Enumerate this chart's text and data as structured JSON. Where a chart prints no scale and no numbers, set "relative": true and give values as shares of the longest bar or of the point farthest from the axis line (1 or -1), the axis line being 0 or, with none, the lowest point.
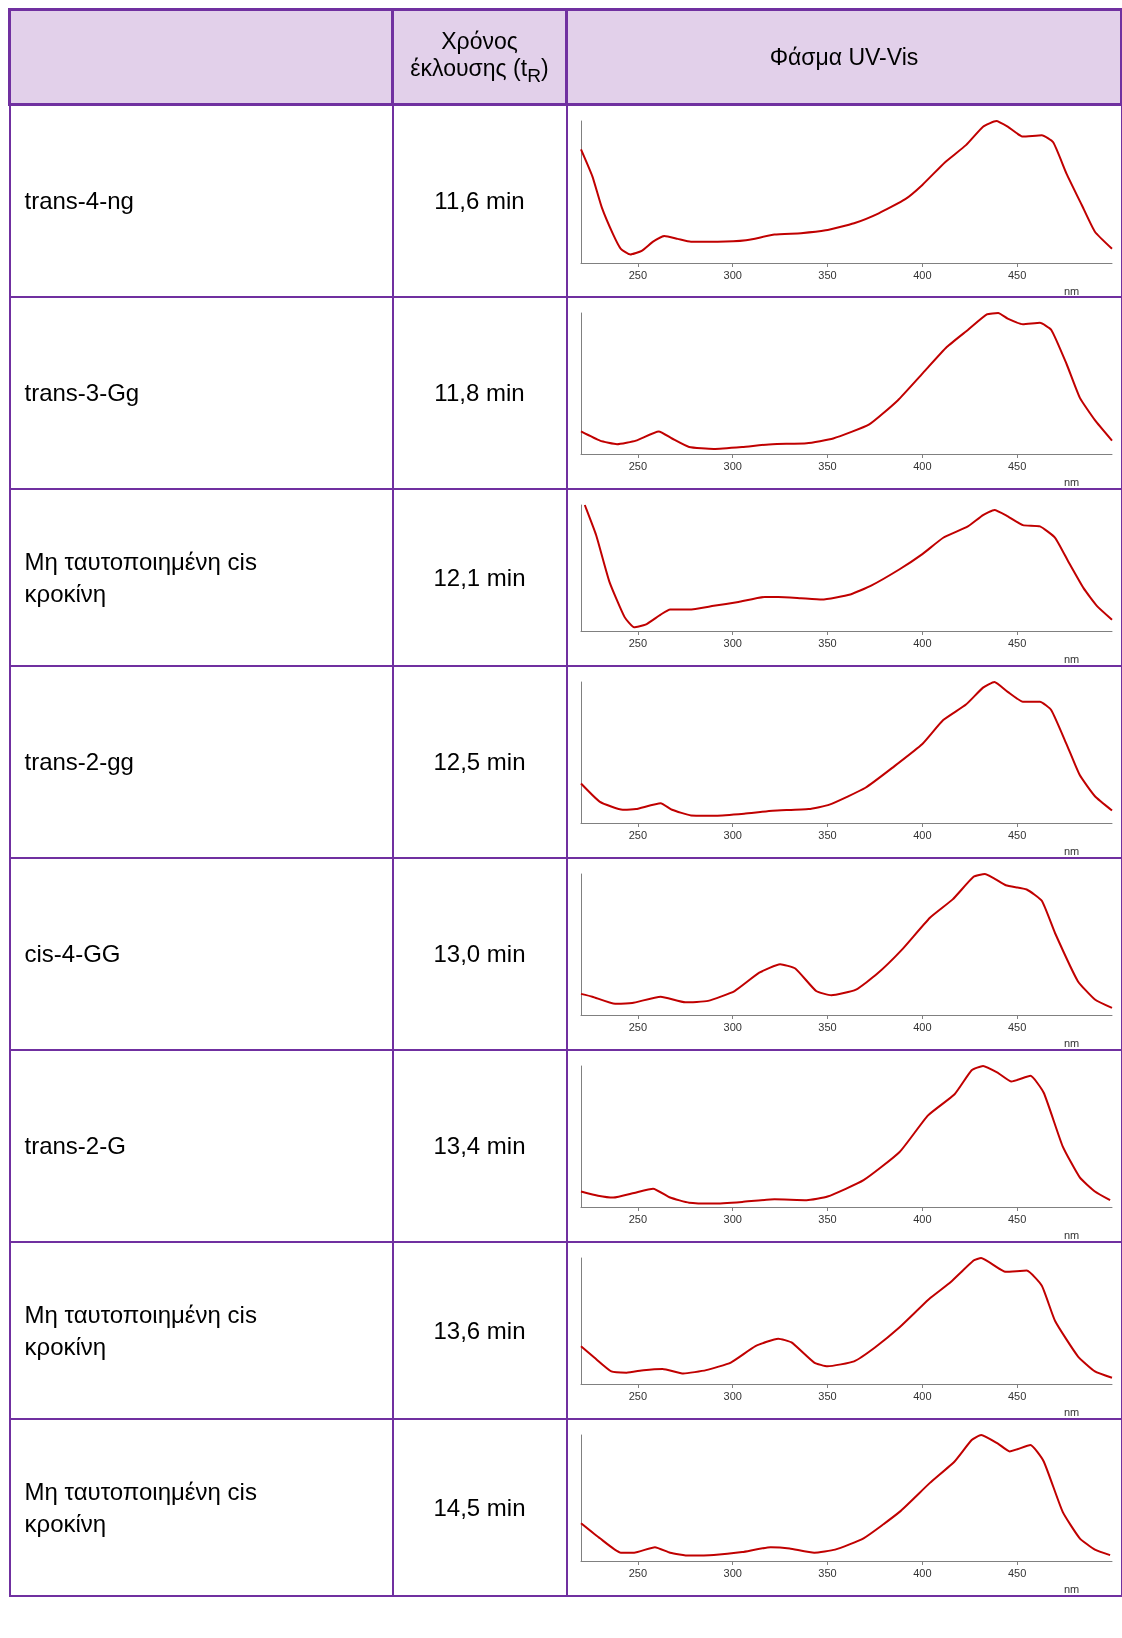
{
  "chart_data": [
    {
      "type": "other",
      "annotations": [
        "Χρόνος έκλουσης (t$_{R}$)",
        "Φάσμα UV-Vis",
        "trans-4-ng",
        "11,6 min",
        "trans-3-Gg",
        "11,8 min",
        "Μη ταυτοποιημένη cis κροκίνη",
        "12,1 min",
        "trans-2-gg",
        "12,5 min",
        "cis-4-GG",
        "13,0 min",
        "trans-2-G",
        "13,4 min",
        "Μη ταυτοποιημένη cis κροκίνη",
        "13,6 min",
        "Μη ταυτοποιημένη cis κροκίνη",
        "14,5 min"
      ]
    },
    {
      "type": "line",
      "xlabel": "nm",
      "relative": true,
      "color": "#c00000",
      "xlim": [
        220,
        500
      ],
      "xticks": [
        250,
        300,
        350,
        400,
        450
      ],
      "x": [
        220,
        226,
        231,
        237,
        241,
        246,
        252,
        258,
        264,
        271,
        278,
        292,
        307,
        322,
        336,
        349,
        364,
        377,
        391,
        400,
        412,
        423,
        432,
        439,
        445,
        453,
        463,
        469,
        476,
        484,
        491,
        500
      ],
      "values": [
        0.8,
        0.61,
        0.39,
        0.2,
        0.1,
        0.06,
        0.085,
        0.15,
        0.19,
        0.17,
        0.15,
        0.15,
        0.16,
        0.2,
        0.21,
        0.23,
        0.28,
        0.35,
        0.45,
        0.55,
        0.71,
        0.83,
        0.96,
        1.0,
        0.96,
        0.89,
        0.9,
        0.85,
        0.63,
        0.41,
        0.22,
        0.1
      ]
    },
    {
      "type": "line",
      "xlabel": "nm",
      "relative": true,
      "color": "#c00000",
      "xlim": [
        220,
        500
      ],
      "xticks": [
        250,
        300,
        350,
        400,
        450
      ],
      "x": [
        220,
        230,
        239,
        249,
        261,
        268,
        277,
        290,
        305,
        321,
        339,
        353,
        372,
        387,
        400,
        413,
        424,
        434,
        440,
        445,
        453,
        462,
        468,
        476,
        483,
        491,
        500
      ],
      "values": [
        0.16,
        0.095,
        0.07,
        0.095,
        0.16,
        0.11,
        0.05,
        0.036,
        0.05,
        0.07,
        0.076,
        0.11,
        0.21,
        0.38,
        0.57,
        0.76,
        0.88,
        0.99,
        1.0,
        0.96,
        0.92,
        0.93,
        0.88,
        0.64,
        0.4,
        0.24,
        0.095
      ]
    },
    {
      "type": "line",
      "xlabel": "nm",
      "relative": true,
      "color": "#c00000",
      "xlim": [
        220,
        500
      ],
      "xticks": [
        250,
        300,
        350,
        400,
        450
      ],
      "x": [
        222,
        228,
        235,
        243,
        248,
        254,
        262,
        267,
        277,
        290,
        303,
        317,
        324,
        336,
        347,
        362,
        373,
        388,
        400,
        411,
        424,
        432,
        438,
        445,
        453,
        462,
        470,
        477,
        485,
        492,
        500
      ],
      "values": [
        1.0,
        0.76,
        0.39,
        0.11,
        0.03,
        0.05,
        0.13,
        0.17,
        0.17,
        0.2,
        0.23,
        0.27,
        0.27,
        0.26,
        0.25,
        0.29,
        0.36,
        0.49,
        0.61,
        0.74,
        0.83,
        0.92,
        0.96,
        0.91,
        0.84,
        0.83,
        0.74,
        0.55,
        0.34,
        0.2,
        0.09
      ]
    },
    {
      "type": "line",
      "xlabel": "nm",
      "relative": true,
      "color": "#c00000",
      "xlim": [
        220,
        500
      ],
      "xticks": [
        250,
        300,
        350,
        400,
        450
      ],
      "x": [
        220,
        230,
        242,
        249,
        262,
        268,
        278,
        291,
        306,
        321,
        340,
        351,
        370,
        385,
        400,
        411,
        423,
        432,
        438,
        445,
        453,
        462,
        468,
        476,
        483,
        491,
        500
      ],
      "values": [
        0.28,
        0.15,
        0.094,
        0.099,
        0.14,
        0.094,
        0.054,
        0.052,
        0.066,
        0.087,
        0.099,
        0.13,
        0.25,
        0.4,
        0.56,
        0.73,
        0.84,
        0.96,
        1.0,
        0.93,
        0.86,
        0.86,
        0.8,
        0.56,
        0.34,
        0.19,
        0.089
      ]
    },
    {
      "type": "line",
      "xlabel": "nm",
      "relative": true,
      "color": "#c00000",
      "xlim": [
        220,
        500
      ],
      "xticks": [
        250,
        300,
        350,
        400,
        450
      ],
      "x": [
        220,
        226,
        238,
        247,
        262,
        275,
        287,
        301,
        314,
        325,
        333,
        344,
        352,
        365,
        376,
        389,
        404,
        416,
        427,
        433,
        444,
        455,
        463,
        470,
        482,
        491,
        500
      ],
      "values": [
        0.15,
        0.13,
        0.08,
        0.085,
        0.13,
        0.09,
        0.1,
        0.17,
        0.3,
        0.36,
        0.33,
        0.17,
        0.14,
        0.18,
        0.29,
        0.46,
        0.69,
        0.82,
        0.98,
        1.0,
        0.92,
        0.89,
        0.81,
        0.58,
        0.24,
        0.11,
        0.05
      ]
    },
    {
      "type": "line",
      "xlabel": "nm",
      "relative": true,
      "color": "#c00000",
      "xlim": [
        220,
        500
      ],
      "xticks": [
        250,
        300,
        350,
        400,
        450
      ],
      "x": [
        220,
        229,
        237,
        248,
        258,
        267,
        277,
        290,
        305,
        322,
        339,
        350,
        369,
        388,
        403,
        417,
        426,
        432,
        440,
        447,
        457,
        464,
        474,
        483,
        491,
        499
      ],
      "values": [
        0.11,
        0.08,
        0.067,
        0.1,
        0.13,
        0.067,
        0.03,
        0.024,
        0.036,
        0.055,
        0.048,
        0.074,
        0.19,
        0.39,
        0.65,
        0.8,
        0.97,
        1.0,
        0.95,
        0.89,
        0.93,
        0.81,
        0.43,
        0.21,
        0.11,
        0.048
      ]
    },
    {
      "type": "line",
      "xlabel": "nm",
      "relative": true,
      "color": "#c00000",
      "xlim": [
        220,
        500
      ],
      "xticks": [
        250,
        300,
        350,
        400,
        450
      ],
      "x": [
        220,
        227,
        236,
        244,
        253,
        263,
        274,
        286,
        299,
        312,
        324,
        331,
        343,
        350,
        364,
        375,
        388,
        404,
        415,
        427,
        431,
        444,
        455,
        463,
        470,
        482,
        491,
        500
      ],
      "values": [
        0.3,
        0.21,
        0.1,
        0.09,
        0.11,
        0.12,
        0.083,
        0.11,
        0.17,
        0.3,
        0.36,
        0.33,
        0.17,
        0.14,
        0.18,
        0.29,
        0.45,
        0.68,
        0.81,
        0.98,
        1.0,
        0.89,
        0.9,
        0.78,
        0.5,
        0.22,
        0.1,
        0.05
      ]
    },
    {
      "type": "line",
      "xlabel": "nm",
      "relative": true,
      "color": "#c00000",
      "xlim": [
        220,
        500
      ],
      "xticks": [
        250,
        300,
        350,
        400,
        450
      ],
      "x": [
        220,
        230,
        241,
        248,
        259,
        267,
        277,
        290,
        305,
        320,
        330,
        343,
        354,
        369,
        388,
        404,
        417,
        426,
        431,
        440,
        446,
        457,
        464,
        474,
        483,
        491,
        499
      ],
      "values": [
        0.3,
        0.18,
        0.066,
        0.066,
        0.11,
        0.066,
        0.043,
        0.047,
        0.071,
        0.11,
        0.1,
        0.066,
        0.09,
        0.18,
        0.39,
        0.62,
        0.79,
        0.96,
        1.0,
        0.93,
        0.87,
        0.92,
        0.79,
        0.39,
        0.18,
        0.09,
        0.047
      ]
    }
  ]
}
